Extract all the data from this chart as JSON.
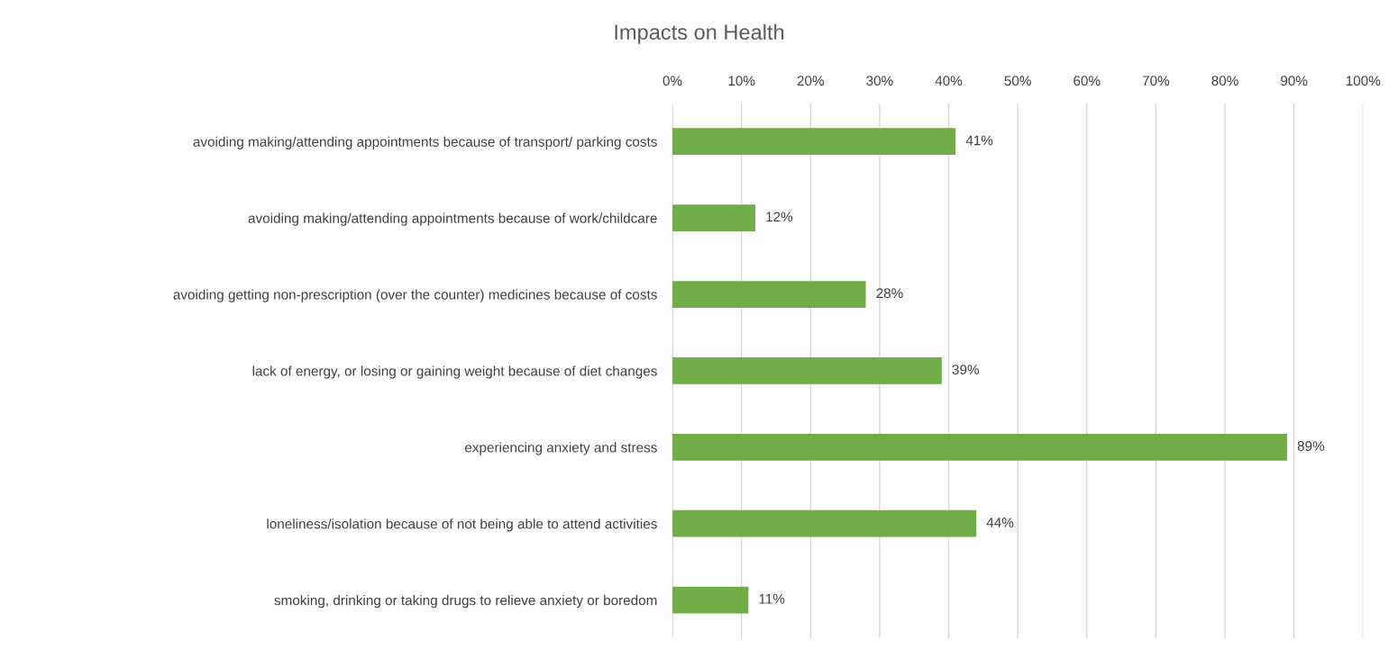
{
  "chart_data": {
    "type": "bar",
    "orientation": "horizontal",
    "title": "Impacts on Health",
    "categories": [
      "avoiding making/attending appointments because of transport/ parking costs",
      "avoiding making/attending appointments because of work/childcare",
      "avoiding getting non-prescription (over the counter) medicines because of costs",
      "lack of energy, or losing or gaining weight because of diet changes",
      "experiencing anxiety and stress",
      "loneliness/isolation because of not being able to attend activities",
      "smoking, drinking or taking drugs to relieve anxiety or boredom"
    ],
    "values": [
      41,
      12,
      28,
      39,
      89,
      44,
      11
    ],
    "value_labels": [
      "41%",
      "12%",
      "28%",
      "39%",
      "89%",
      "44%",
      "11%"
    ],
    "color": "#70ad47",
    "xlim": [
      0,
      100
    ],
    "xticks": [
      {
        "value": 0,
        "label": "0%"
      },
      {
        "value": 10,
        "label": "10%"
      },
      {
        "value": 20,
        "label": "20%"
      },
      {
        "value": 30,
        "label": "30%"
      },
      {
        "value": 40,
        "label": "40%"
      },
      {
        "value": 50,
        "label": "50%"
      },
      {
        "value": 60,
        "label": "60%"
      },
      {
        "value": 70,
        "label": "70%"
      },
      {
        "value": 80,
        "label": "80%"
      },
      {
        "value": 90,
        "label": "90%"
      },
      {
        "value": 100,
        "label": "100%"
      }
    ],
    "grid": "x",
    "legend": false
  }
}
